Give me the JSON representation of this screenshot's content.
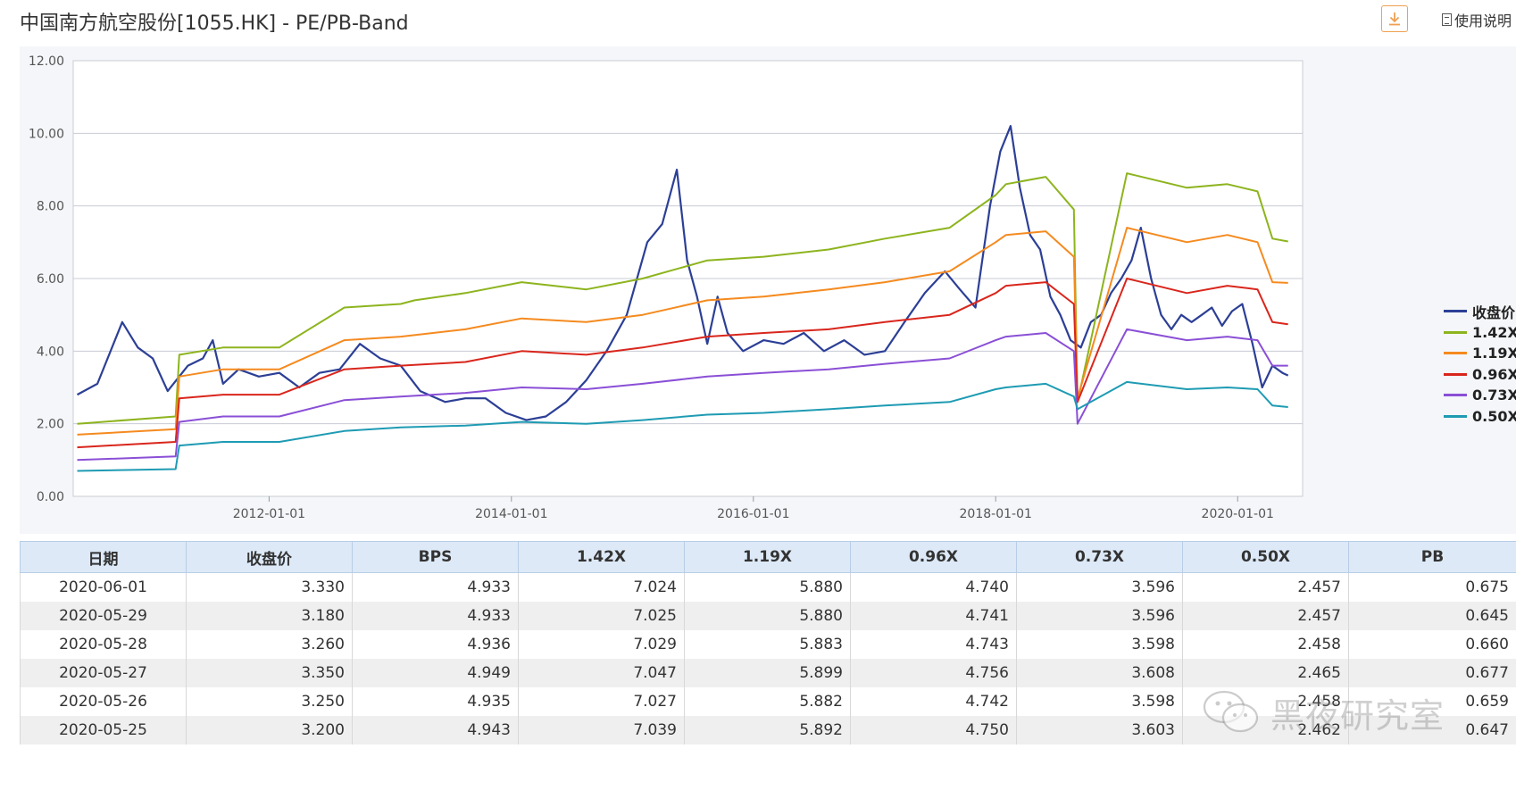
{
  "header": {
    "title": "中国南方航空股份[1055.HK] - PE/PB-Band",
    "help_label": "使用说明"
  },
  "chart_data": {
    "type": "line",
    "x_ticks": [
      "2012-01-01",
      "2014-01-01",
      "2016-01-01",
      "2018-01-01",
      "2020-01-01"
    ],
    "y_ticks": [
      "12.00",
      "10.00",
      "8.00",
      "6.00",
      "4.00",
      "2.00",
      "0.00"
    ],
    "ylim": [
      0,
      12
    ],
    "xlim": [
      "2010-05-20",
      "2020-07-15"
    ],
    "grid": true,
    "legend_position": "right",
    "series": [
      {
        "name": "收盘价",
        "color": "#2c3f96",
        "x": [
          "2010-06-01",
          "2010-08-01",
          "2010-10-15",
          "2010-12-01",
          "2011-01-15",
          "2011-03-01",
          "2011-05-01",
          "2011-06-15",
          "2011-07-15",
          "2011-08-15",
          "2011-10-01",
          "2011-12-01",
          "2012-02-01",
          "2012-04-01",
          "2012-06-01",
          "2012-08-01",
          "2012-10-01",
          "2012-12-01",
          "2013-02-01",
          "2013-04-01",
          "2013-06-15",
          "2013-08-15",
          "2013-10-15",
          "2013-12-15",
          "2014-02-15",
          "2014-04-15",
          "2014-06-15",
          "2014-08-15",
          "2014-10-15",
          "2014-12-15",
          "2015-02-15",
          "2015-04-01",
          "2015-05-15",
          "2015-06-15",
          "2015-07-15",
          "2015-08-15",
          "2015-09-15",
          "2015-10-15",
          "2015-12-01",
          "2016-02-01",
          "2016-04-01",
          "2016-06-01",
          "2016-08-01",
          "2016-10-01",
          "2016-12-01",
          "2017-02-01",
          "2017-04-01",
          "2017-06-01",
          "2017-08-01",
          "2017-09-15",
          "2017-11-01",
          "2017-12-15",
          "2018-01-15",
          "2018-02-15",
          "2018-03-15",
          "2018-04-15",
          "2018-05-15",
          "2018-06-15",
          "2018-07-15",
          "2018-08-15",
          "2018-09-15",
          "2018-10-15",
          "2018-11-15",
          "2018-12-15",
          "2019-01-15",
          "2019-02-15",
          "2019-03-15",
          "2019-04-15",
          "2019-05-15",
          "2019-06-15",
          "2019-07-15",
          "2019-08-15",
          "2019-09-15",
          "2019-10-15",
          "2019-11-15",
          "2019-12-15",
          "2020-01-15",
          "2020-02-15",
          "2020-03-15",
          "2020-04-15",
          "2020-05-15",
          "2020-06-01"
        ],
        "y": [
          2.8,
          3.1,
          4.8,
          4.1,
          3.8,
          2.9,
          3.6,
          3.8,
          4.3,
          3.1,
          3.5,
          3.3,
          3.4,
          3.0,
          3.4,
          3.5,
          4.2,
          3.8,
          3.6,
          2.9,
          2.6,
          2.7,
          2.7,
          2.3,
          2.1,
          2.2,
          2.6,
          3.2,
          4.0,
          5.0,
          7.0,
          7.5,
          9.0,
          6.5,
          5.5,
          4.2,
          5.5,
          4.5,
          4.0,
          4.3,
          4.2,
          4.5,
          4.0,
          4.3,
          3.9,
          4.0,
          4.8,
          5.6,
          6.2,
          5.7,
          5.2,
          8.0,
          9.5,
          10.2,
          8.5,
          7.2,
          6.8,
          5.5,
          5.0,
          4.3,
          4.1,
          4.8,
          5.0,
          5.6,
          6.0,
          6.5,
          7.4,
          6.0,
          5.0,
          4.6,
          5.0,
          4.8,
          5.0,
          5.2,
          4.7,
          5.1,
          5.3,
          4.2,
          3.0,
          3.6,
          3.4,
          3.33
        ]
      },
      {
        "name": "1.42X",
        "color": "#8db41e",
        "x": [
          "2010-06-01",
          "2011-03-25",
          "2011-04-05",
          "2011-08-15",
          "2012-02-01",
          "2012-08-15",
          "2013-02-01",
          "2013-03-15",
          "2013-08-15",
          "2014-02-01",
          "2014-08-15",
          "2015-02-01",
          "2015-08-15",
          "2016-02-01",
          "2016-08-15",
          "2017-02-01",
          "2017-08-15",
          "2018-01-01",
          "2018-02-01",
          "2018-06-01",
          "2018-08-25",
          "2018-09-05",
          "2019-02-01",
          "2019-08-01",
          "2019-12-01",
          "2020-03-01",
          "2020-04-15",
          "2020-06-01"
        ],
        "y": [
          2.0,
          2.2,
          3.9,
          4.1,
          4.1,
          5.2,
          5.3,
          5.4,
          5.6,
          5.9,
          5.7,
          6.0,
          6.5,
          6.6,
          6.8,
          7.1,
          7.4,
          8.3,
          8.6,
          8.8,
          7.9,
          2.6,
          8.9,
          8.5,
          8.6,
          8.4,
          7.1,
          7.02
        ]
      },
      {
        "name": "1.19X",
        "color": "#f58a1f",
        "x": [
          "2010-06-01",
          "2011-03-25",
          "2011-04-05",
          "2011-08-15",
          "2012-02-01",
          "2012-08-15",
          "2013-02-01",
          "2013-08-15",
          "2014-02-01",
          "2014-08-15",
          "2015-02-01",
          "2015-08-15",
          "2016-02-01",
          "2016-08-15",
          "2017-02-01",
          "2017-08-15",
          "2018-01-01",
          "2018-02-01",
          "2018-06-01",
          "2018-08-25",
          "2018-09-05",
          "2019-02-01",
          "2019-08-01",
          "2019-12-01",
          "2020-03-01",
          "2020-04-15",
          "2020-06-01"
        ],
        "y": [
          1.7,
          1.85,
          3.3,
          3.5,
          3.5,
          4.3,
          4.4,
          4.6,
          4.9,
          4.8,
          5.0,
          5.4,
          5.5,
          5.7,
          5.9,
          6.2,
          7.0,
          7.2,
          7.3,
          6.6,
          2.7,
          7.4,
          7.0,
          7.2,
          7.0,
          5.9,
          5.88
        ]
      },
      {
        "name": "0.96X",
        "color": "#d9261c",
        "x": [
          "2010-06-01",
          "2011-03-25",
          "2011-04-05",
          "2011-08-15",
          "2012-02-01",
          "2012-08-15",
          "2013-02-01",
          "2013-08-15",
          "2014-02-01",
          "2014-08-15",
          "2015-02-01",
          "2015-08-15",
          "2016-02-01",
          "2016-08-15",
          "2017-02-01",
          "2017-08-15",
          "2018-01-01",
          "2018-02-01",
          "2018-06-01",
          "2018-08-25",
          "2018-09-05",
          "2019-02-01",
          "2019-08-01",
          "2019-12-01",
          "2020-03-01",
          "2020-04-15",
          "2020-06-01"
        ],
        "y": [
          1.35,
          1.5,
          2.7,
          2.8,
          2.8,
          3.5,
          3.6,
          3.7,
          4.0,
          3.9,
          4.1,
          4.4,
          4.5,
          4.6,
          4.8,
          5.0,
          5.6,
          5.8,
          5.9,
          5.3,
          2.6,
          6.0,
          5.6,
          5.8,
          5.7,
          4.8,
          4.74
        ]
      },
      {
        "name": "0.73X",
        "color": "#8a4fd6",
        "x": [
          "2010-06-01",
          "2011-03-25",
          "2011-04-05",
          "2011-08-15",
          "2012-02-01",
          "2012-08-15",
          "2013-02-01",
          "2013-08-15",
          "2014-02-01",
          "2014-08-15",
          "2015-02-01",
          "2015-08-15",
          "2016-02-01",
          "2016-08-15",
          "2017-02-01",
          "2017-08-15",
          "2018-01-01",
          "2018-02-01",
          "2018-06-01",
          "2018-08-25",
          "2018-09-05",
          "2019-02-01",
          "2019-08-01",
          "2019-12-01",
          "2020-03-01",
          "2020-04-15",
          "2020-06-01"
        ],
        "y": [
          1.0,
          1.1,
          2.05,
          2.2,
          2.2,
          2.65,
          2.75,
          2.85,
          3.0,
          2.95,
          3.1,
          3.3,
          3.4,
          3.5,
          3.65,
          3.8,
          4.3,
          4.4,
          4.5,
          4.0,
          2.0,
          4.6,
          4.3,
          4.4,
          4.3,
          3.6,
          3.6
        ]
      },
      {
        "name": "0.50X",
        "color": "#1e9bb3",
        "x": [
          "2010-06-01",
          "2011-03-25",
          "2011-04-05",
          "2011-08-15",
          "2012-02-01",
          "2012-08-15",
          "2013-02-01",
          "2013-08-15",
          "2014-02-01",
          "2014-08-15",
          "2015-02-01",
          "2015-08-15",
          "2016-02-01",
          "2016-08-15",
          "2017-02-01",
          "2017-08-15",
          "2018-01-01",
          "2018-02-01",
          "2018-06-01",
          "2018-08-25",
          "2018-09-05",
          "2019-02-01",
          "2019-08-01",
          "2019-12-01",
          "2020-03-01",
          "2020-04-15",
          "2020-06-01"
        ],
        "y": [
          0.7,
          0.75,
          1.4,
          1.5,
          1.5,
          1.8,
          1.9,
          1.95,
          2.05,
          2.0,
          2.1,
          2.25,
          2.3,
          2.4,
          2.5,
          2.6,
          2.95,
          3.0,
          3.1,
          2.75,
          2.4,
          3.15,
          2.95,
          3.0,
          2.95,
          2.5,
          2.46
        ]
      }
    ]
  },
  "table": {
    "columns": [
      "日期",
      "收盘价",
      "BPS",
      "1.42X",
      "1.19X",
      "0.96X",
      "0.73X",
      "0.50X",
      "PB"
    ],
    "rows": [
      [
        "2020-06-01",
        "3.330",
        "4.933",
        "7.024",
        "5.880",
        "4.740",
        "3.596",
        "2.457",
        "0.675"
      ],
      [
        "2020-05-29",
        "3.180",
        "4.933",
        "7.025",
        "5.880",
        "4.741",
        "3.596",
        "2.457",
        "0.645"
      ],
      [
        "2020-05-28",
        "3.260",
        "4.936",
        "7.029",
        "5.883",
        "4.743",
        "3.598",
        "2.458",
        "0.660"
      ],
      [
        "2020-05-27",
        "3.350",
        "4.949",
        "7.047",
        "5.899",
        "4.756",
        "3.608",
        "2.465",
        "0.677"
      ],
      [
        "2020-05-26",
        "3.250",
        "4.935",
        "7.027",
        "5.882",
        "4.742",
        "3.598",
        "2.458",
        "0.659"
      ],
      [
        "2020-05-25",
        "3.200",
        "4.943",
        "7.039",
        "5.892",
        "4.750",
        "3.603",
        "2.462",
        "0.647"
      ]
    ]
  },
  "watermark": {
    "text": "黑夜研究室"
  },
  "icons": {
    "download": "download-icon",
    "help": "document-icon",
    "watermark": "wechat-icon"
  }
}
